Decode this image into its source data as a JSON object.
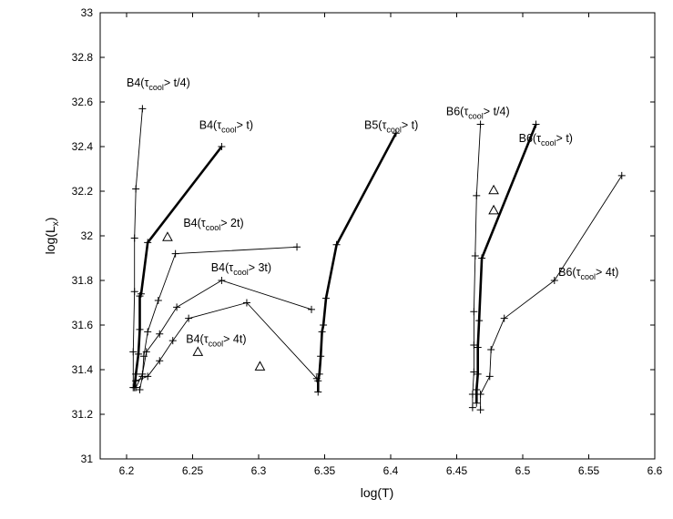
{
  "chart_data": {
    "type": "line",
    "title": "",
    "xlabel": "log(T)",
    "ylabel_main": "log(L",
    "ylabel_sub": "x",
    "ylabel_end": ")",
    "xlim": [
      6.18,
      6.6
    ],
    "ylim": [
      31,
      33
    ],
    "grid": false,
    "xticks": [
      {
        "value": 6.2,
        "label": "6.2"
      },
      {
        "value": 6.25,
        "label": "6.25"
      },
      {
        "value": 6.3,
        "label": "6.3"
      },
      {
        "value": 6.35,
        "label": "6.35"
      },
      {
        "value": 6.4,
        "label": "6.4"
      },
      {
        "value": 6.45,
        "label": "6.45"
      },
      {
        "value": 6.5,
        "label": "6.5"
      },
      {
        "value": 6.55,
        "label": "6.55"
      },
      {
        "value": 6.6,
        "label": "6.6"
      }
    ],
    "yticks": [
      {
        "value": 31,
        "label": "31"
      },
      {
        "value": 31.2,
        "label": "31.2"
      },
      {
        "value": 31.4,
        "label": "31.4"
      },
      {
        "value": 31.6,
        "label": "31.6"
      },
      {
        "value": 31.8,
        "label": "31.8"
      },
      {
        "value": 32,
        "label": "32"
      },
      {
        "value": 32.2,
        "label": "32.2"
      },
      {
        "value": 32.4,
        "label": "32.4"
      },
      {
        "value": 32.6,
        "label": "32.6"
      },
      {
        "value": 32.8,
        "label": "32.8"
      },
      {
        "value": 33,
        "label": "33"
      }
    ],
    "series": [
      {
        "label": {
          "pre": "B4(τ",
          "sub": "cool",
          "post": "> t/4)"
        },
        "bold": false,
        "x": [
          6.205,
          6.205,
          6.206,
          6.206,
          6.207,
          6.212
        ],
        "y": [
          31.32,
          31.48,
          31.75,
          31.99,
          32.21,
          32.57
        ],
        "label_pos": [
          6.2,
          32.67
        ]
      },
      {
        "label": {
          "pre": "B4(τ",
          "sub": "cool",
          "post": "> t)"
        },
        "bold": true,
        "x": [
          6.206,
          6.207,
          6.209,
          6.21,
          6.21,
          6.211,
          6.216,
          6.272
        ],
        "y": [
          31.32,
          31.38,
          31.47,
          31.58,
          31.73,
          31.74,
          31.97,
          32.4
        ],
        "label_pos": [
          6.255,
          32.48
        ]
      },
      {
        "label": {
          "pre": "B4(τ",
          "sub": "cool",
          "post": "> 2t)"
        },
        "bold": false,
        "x": [
          6.21,
          6.212,
          6.213,
          6.216,
          6.224,
          6.237,
          6.329
        ],
        "y": [
          31.31,
          31.37,
          31.46,
          31.57,
          31.71,
          31.92,
          31.95
        ],
        "label_pos": [
          6.243,
          32.04
        ]
      },
      {
        "label": {
          "pre": "B4(τ",
          "sub": "cool",
          "post": "> 3t)"
        },
        "bold": false,
        "x": [
          6.207,
          6.212,
          6.215,
          6.225,
          6.238,
          6.272,
          6.34
        ],
        "y": [
          31.32,
          31.38,
          31.48,
          31.56,
          31.68,
          31.8,
          31.67
        ],
        "label_pos": [
          6.264,
          31.84
        ]
      },
      {
        "label": {
          "pre": "B4(τ",
          "sub": "cool",
          "post": "> 4t)"
        },
        "bold": false,
        "x": [
          6.207,
          6.216,
          6.225,
          6.235,
          6.247,
          6.291,
          6.344
        ],
        "y": [
          31.35,
          31.37,
          31.44,
          31.53,
          31.63,
          31.7,
          31.36
        ],
        "label_pos": [
          6.245,
          31.52
        ]
      },
      {
        "label": {
          "pre": "B5(τ",
          "sub": "cool",
          "post": "> t)"
        },
        "bold": true,
        "x": [
          6.345,
          6.345,
          6.346,
          6.347,
          6.348,
          6.349,
          6.351,
          6.359,
          6.404
        ],
        "y": [
          31.3,
          31.35,
          31.38,
          31.46,
          31.57,
          31.6,
          31.72,
          31.96,
          32.46
        ],
        "label_pos": [
          6.38,
          32.48
        ]
      },
      {
        "label": {
          "pre": "B6(τ",
          "sub": "cool",
          "post": "> t/4)"
        },
        "bold": false,
        "x": [
          6.462,
          6.462,
          6.463,
          6.463,
          6.463,
          6.464,
          6.465,
          6.468
        ],
        "y": [
          31.23,
          31.29,
          31.39,
          31.51,
          31.66,
          31.91,
          32.18,
          32.5
        ],
        "label_pos": [
          6.442,
          32.54
        ]
      },
      {
        "label": {
          "pre": "B6(τ",
          "sub": "cool",
          "post": "> t)"
        },
        "bold": true,
        "x": [
          6.465,
          6.465,
          6.466,
          6.466,
          6.467,
          6.469,
          6.51
        ],
        "y": [
          31.25,
          31.31,
          31.38,
          31.5,
          31.62,
          31.9,
          32.5
        ],
        "label_pos": [
          6.497,
          32.42
        ]
      },
      {
        "label": {
          "pre": "B6(τ",
          "sub": "cool",
          "post": "> 4t)"
        },
        "bold": false,
        "x": [
          6.468,
          6.468,
          6.475,
          6.476,
          6.486,
          6.524,
          6.575
        ],
        "y": [
          31.22,
          31.29,
          31.37,
          31.49,
          31.63,
          31.8,
          32.27
        ],
        "label_pos": [
          6.527,
          31.82
        ]
      }
    ],
    "triangles": [
      {
        "x": 6.231,
        "y": 31.995
      },
      {
        "x": 6.254,
        "y": 31.48
      },
      {
        "x": 6.301,
        "y": 31.415
      },
      {
        "x": 6.478,
        "y": 32.205
      },
      {
        "x": 6.478,
        "y": 32.115
      }
    ]
  }
}
